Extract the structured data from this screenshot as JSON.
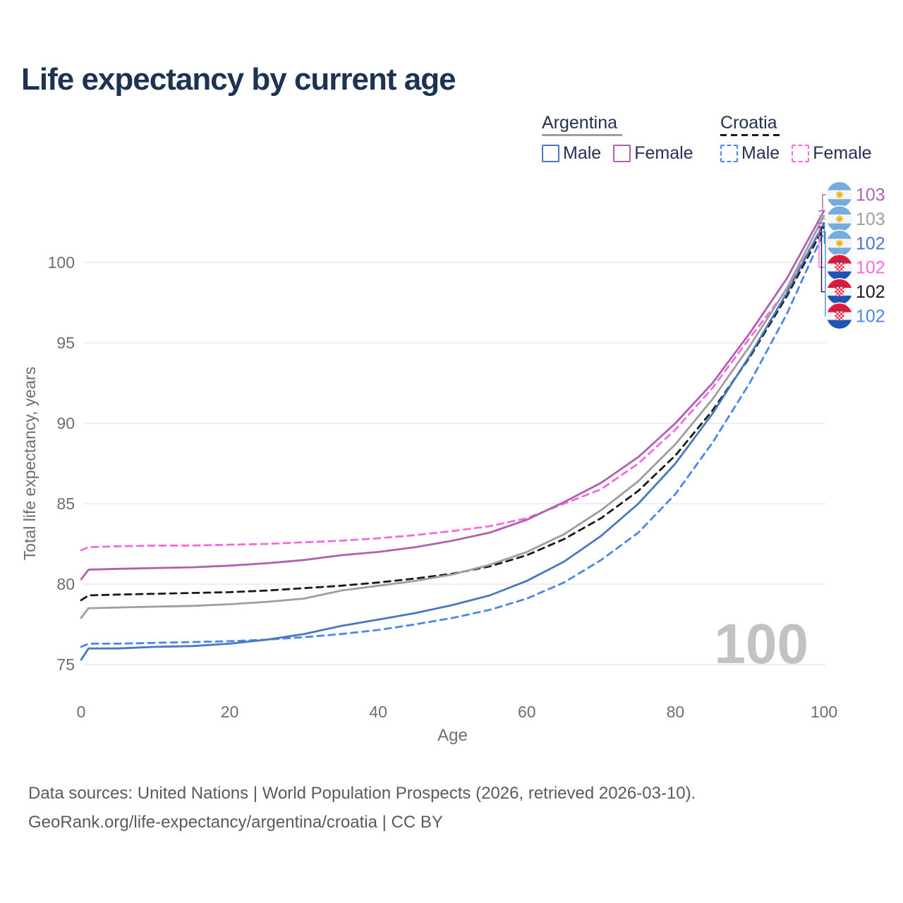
{
  "header": {
    "title": "Life expectancy by current age"
  },
  "legend": {
    "groups": [
      {
        "country": "Argentina",
        "line_style": "solid",
        "country_line_color": "#9E9E9E",
        "items": [
          {
            "label": "Male",
            "color": "#4A77BD",
            "dash": false
          },
          {
            "label": "Female",
            "color": "#AE62AE",
            "dash": false
          }
        ]
      },
      {
        "country": "Croatia",
        "line_style": "dashed",
        "country_line_color": "#1A1A1A",
        "items": [
          {
            "label": "Male",
            "color": "#4B86EA",
            "dash": true
          },
          {
            "label": "Female",
            "color": "#F869DF",
            "dash": true
          }
        ]
      }
    ]
  },
  "chart_data": {
    "type": "line",
    "title": "Life expectancy by current age",
    "xlabel": "Age",
    "ylabel": "Total life expectancy, years",
    "xlim": [
      0,
      100
    ],
    "ylim": [
      75,
      103.5
    ],
    "xticks": [
      0,
      20,
      40,
      60,
      80,
      100
    ],
    "yticks": [
      75,
      80,
      85,
      90,
      95,
      100
    ],
    "grid": "horizontal",
    "legend_position": "top-right",
    "frame_label": "100",
    "x": [
      0,
      1,
      5,
      10,
      15,
      20,
      25,
      30,
      35,
      40,
      45,
      50,
      55,
      60,
      65,
      70,
      75,
      80,
      85,
      90,
      95,
      100
    ],
    "series": [
      {
        "name": "Argentina Female",
        "country": "Argentina",
        "sex": "Female",
        "color": "#AE62AE",
        "dash": false,
        "flag": "argentina",
        "end_label": "103",
        "label_row": 0,
        "values": [
          80.3,
          80.9,
          80.95,
          81.0,
          81.05,
          81.15,
          81.3,
          81.5,
          81.8,
          82.0,
          82.3,
          82.7,
          83.2,
          84.0,
          85.1,
          86.3,
          87.9,
          90.0,
          92.5,
          95.6,
          99.0,
          103.2
        ]
      },
      {
        "name": "Argentina",
        "country": "Argentina",
        "sex": "Both",
        "color": "#9E9E9E",
        "dash": false,
        "flag": "argentina",
        "end_label": "103",
        "label_row": 1,
        "values": [
          77.9,
          78.5,
          78.55,
          78.6,
          78.65,
          78.75,
          78.9,
          79.1,
          79.6,
          79.9,
          80.2,
          80.6,
          81.2,
          82.0,
          83.1,
          84.6,
          86.4,
          88.7,
          91.5,
          94.8,
          98.4,
          102.9
        ]
      },
      {
        "name": "Argentina Male",
        "country": "Argentina",
        "sex": "Male",
        "color": "#4A77BD",
        "dash": false,
        "flag": "argentina",
        "end_label": "102",
        "label_row": 2,
        "values": [
          75.3,
          76.0,
          76.0,
          76.1,
          76.15,
          76.3,
          76.55,
          76.9,
          77.4,
          77.8,
          78.2,
          78.7,
          79.3,
          80.2,
          81.4,
          83.0,
          85.0,
          87.5,
          90.6,
          94.2,
          98.1,
          102.45
        ]
      },
      {
        "name": "Croatia Female",
        "country": "Croatia",
        "sex": "Female",
        "color": "#F869DF",
        "dash": true,
        "flag": "croatia",
        "end_label": "102",
        "label_row": 3,
        "values": [
          82.1,
          82.3,
          82.35,
          82.4,
          82.4,
          82.45,
          82.5,
          82.6,
          82.7,
          82.85,
          83.05,
          83.3,
          83.6,
          84.1,
          85.0,
          85.9,
          87.5,
          89.6,
          92.2,
          95.3,
          98.3,
          102.4
        ]
      },
      {
        "name": "Croatia",
        "country": "Croatia",
        "sex": "Both",
        "color": "#1A1A1A",
        "dash": true,
        "flag": "croatia",
        "end_label": "102",
        "label_row": 4,
        "values": [
          79.0,
          79.3,
          79.35,
          79.4,
          79.45,
          79.5,
          79.6,
          79.75,
          79.9,
          80.1,
          80.35,
          80.65,
          81.1,
          81.8,
          82.8,
          84.1,
          85.8,
          88.0,
          90.8,
          94.1,
          97.9,
          102.2
        ]
      },
      {
        "name": "Croatia Male",
        "country": "Croatia",
        "sex": "Male",
        "color": "#4B86EA",
        "dash": true,
        "flag": "croatia",
        "end_label": "102",
        "label_row": 5,
        "values": [
          76.1,
          76.3,
          76.3,
          76.35,
          76.4,
          76.45,
          76.55,
          76.7,
          76.9,
          77.15,
          77.5,
          77.9,
          78.4,
          79.1,
          80.1,
          81.5,
          83.2,
          85.6,
          88.8,
          92.5,
          96.8,
          101.9
        ]
      }
    ]
  },
  "footer": {
    "line1": "Data sources: United Nations | World Population Prospects (2026, retrieved 2026-03-10).",
    "line2": "GeoRank.org/life-expectancy/argentina/croatia | CC BY"
  },
  "colors": {
    "title_text": "#1C3354",
    "legend_text": "#23324E",
    "axis_text": "#6E6E6E",
    "gridline": "#E4E4E4",
    "watermark": "#C2C2C2",
    "footer_text": "#5A5A5A"
  }
}
